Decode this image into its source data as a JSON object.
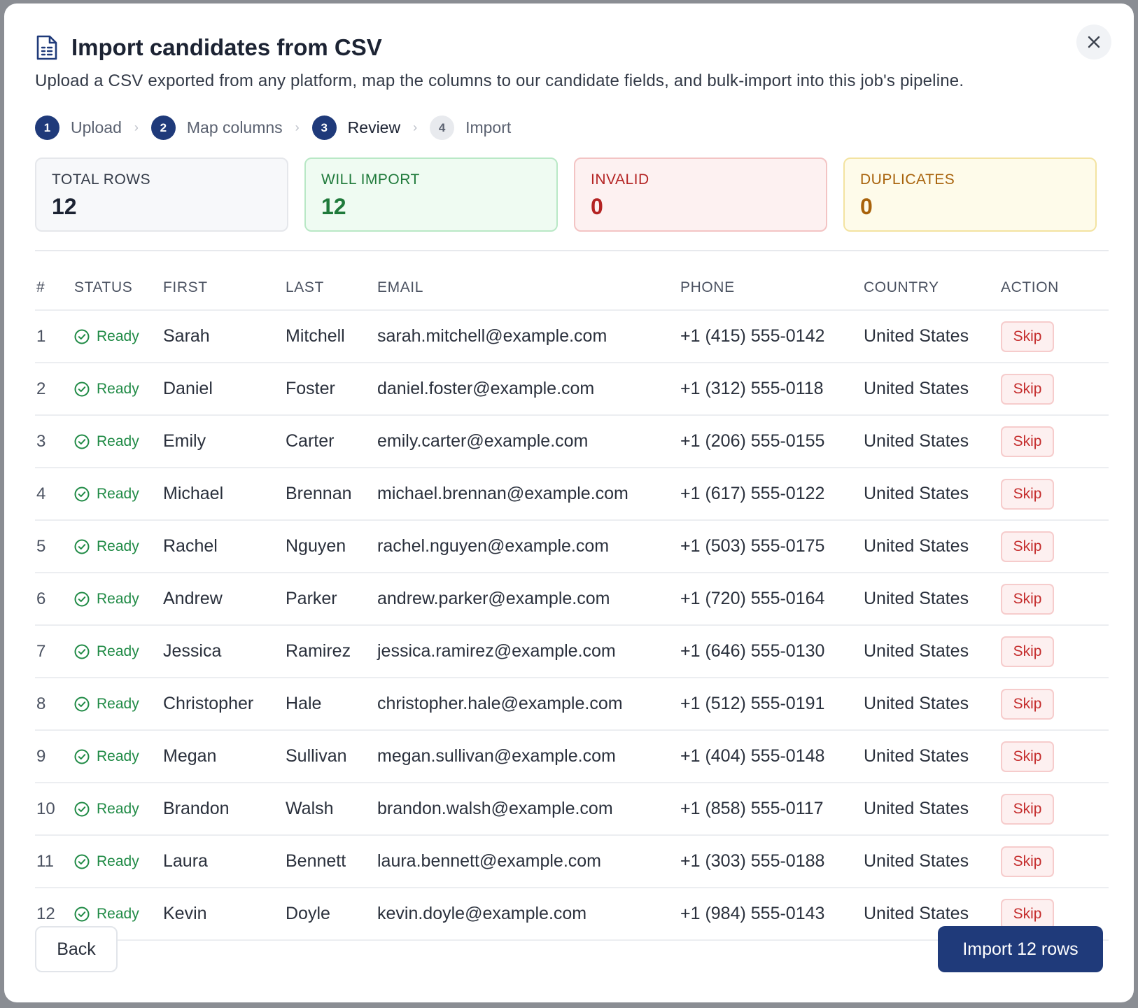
{
  "dialog": {
    "title": "Import candidates from CSV",
    "subtitle": "Upload a CSV exported from any platform, map the columns to our candidate fields, and bulk-import into this job's pipeline."
  },
  "steps": [
    {
      "num": "1",
      "label": "Upload",
      "state": "done"
    },
    {
      "num": "2",
      "label": "Map columns",
      "state": "done"
    },
    {
      "num": "3",
      "label": "Review",
      "state": "current"
    },
    {
      "num": "4",
      "label": "Import",
      "state": "pending"
    }
  ],
  "stats": {
    "total": {
      "label": "TOTAL ROWS",
      "value": "12"
    },
    "will_import": {
      "label": "WILL IMPORT",
      "value": "12"
    },
    "invalid": {
      "label": "INVALID",
      "value": "0"
    },
    "duplicates": {
      "label": "DUPLICATES",
      "value": "0"
    }
  },
  "table": {
    "columns": [
      "#",
      "STATUS",
      "FIRST",
      "LAST",
      "EMAIL",
      "PHONE",
      "COUNTRY",
      "ACTION"
    ],
    "status_label": "Ready",
    "action_label": "Skip",
    "rows": [
      {
        "num": "1",
        "first": "Sarah",
        "last": "Mitchell",
        "email": "sarah.mitchell@example.com",
        "phone": "+1 (415) 555-0142",
        "country": "United States"
      },
      {
        "num": "2",
        "first": "Daniel",
        "last": "Foster",
        "email": "daniel.foster@example.com",
        "phone": "+1 (312) 555-0118",
        "country": "United States"
      },
      {
        "num": "3",
        "first": "Emily",
        "last": "Carter",
        "email": "emily.carter@example.com",
        "phone": "+1 (206) 555-0155",
        "country": "United States"
      },
      {
        "num": "4",
        "first": "Michael",
        "last": "Brennan",
        "email": "michael.brennan@example.com",
        "phone": "+1 (617) 555-0122",
        "country": "United States"
      },
      {
        "num": "5",
        "first": "Rachel",
        "last": "Nguyen",
        "email": "rachel.nguyen@example.com",
        "phone": "+1 (503) 555-0175",
        "country": "United States"
      },
      {
        "num": "6",
        "first": "Andrew",
        "last": "Parker",
        "email": "andrew.parker@example.com",
        "phone": "+1 (720) 555-0164",
        "country": "United States"
      },
      {
        "num": "7",
        "first": "Jessica",
        "last": "Ramirez",
        "email": "jessica.ramirez@example.com",
        "phone": "+1 (646) 555-0130",
        "country": "United States"
      },
      {
        "num": "8",
        "first": "Christopher",
        "last": "Hale",
        "email": "christopher.hale@example.com",
        "phone": "+1 (512) 555-0191",
        "country": "United States"
      },
      {
        "num": "9",
        "first": "Megan",
        "last": "Sullivan",
        "email": "megan.sullivan@example.com",
        "phone": "+1 (404) 555-0148",
        "country": "United States"
      },
      {
        "num": "10",
        "first": "Brandon",
        "last": "Walsh",
        "email": "brandon.walsh@example.com",
        "phone": "+1 (858) 555-0117",
        "country": "United States"
      },
      {
        "num": "11",
        "first": "Laura",
        "last": "Bennett",
        "email": "laura.bennett@example.com",
        "phone": "+1 (303) 555-0188",
        "country": "United States"
      },
      {
        "num": "12",
        "first": "Kevin",
        "last": "Doyle",
        "email": "kevin.doyle@example.com",
        "phone": "+1 (984) 555-0143",
        "country": "United States"
      }
    ]
  },
  "footer": {
    "back_label": "Back",
    "import_label": "Import 12 rows"
  },
  "colors": {
    "primary": "#1f3a7a",
    "success": "#1f8a45",
    "danger": "#c42b2b",
    "warning": "#a8620b"
  },
  "icons": {
    "title": "document-spreadsheet-icon",
    "close": "close-icon",
    "status": "check-circle-icon",
    "step_separator": "chevron-right-icon"
  }
}
